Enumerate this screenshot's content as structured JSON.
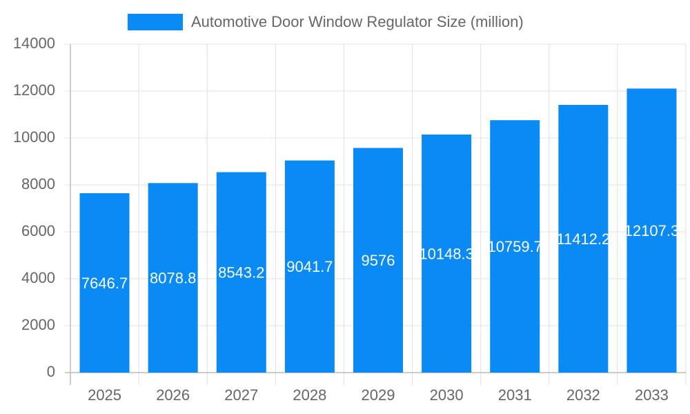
{
  "chart_data": {
    "type": "bar",
    "categories": [
      "2025",
      "2026",
      "2027",
      "2028",
      "2029",
      "2030",
      "2031",
      "2032",
      "2033"
    ],
    "series": [
      {
        "name": "Automotive Door Window Regulator Size (million)",
        "color": "#0a8af5",
        "values": [
          7646.7,
          8078.8,
          8543.2,
          9041.7,
          9576,
          10148.3,
          10759.7,
          11412.2,
          12107.3
        ]
      }
    ],
    "ylim": [
      0,
      14000
    ],
    "yticks": [
      0,
      2000,
      4000,
      6000,
      8000,
      10000,
      12000,
      14000
    ],
    "grid": true
  }
}
